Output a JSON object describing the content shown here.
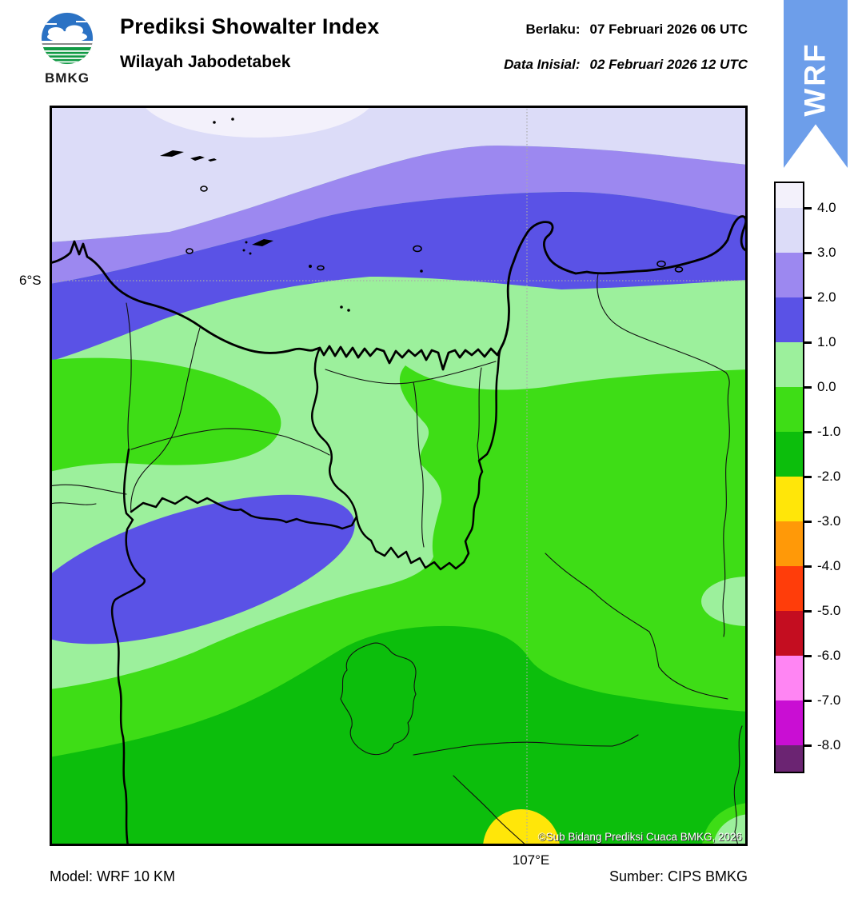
{
  "header": {
    "logo_text": "BMKG",
    "title": "Prediksi Showalter Index",
    "subtitle": "Wilayah Jabodetabek",
    "valid": {
      "label": "Berlaku:",
      "value": "07 Februari 2026 06 UTC"
    },
    "initial": {
      "label": "Data Inisial:",
      "value": "02 Februari 2026 12 UTC"
    },
    "ribbon_label": "WRF"
  },
  "map": {
    "lat_label": "6°S",
    "lon_label": "107°E",
    "copyright": "©Sub Bidang Prediksi Cuaca BMKG, 2026"
  },
  "colorbar": {
    "ticks": [
      "4.0",
      "3.0",
      "2.0",
      "1.0",
      "0.0",
      "-1.0",
      "-2.0",
      "-3.0",
      "-4.0",
      "-5.0",
      "-6.0",
      "-7.0",
      "-8.0"
    ],
    "colors": [
      "#F3F1FB",
      "#DCDCF8",
      "#9C88F0",
      "#5A52E6",
      "#9CF09C",
      "#3EDD16",
      "#0CBE0C",
      "#FFE609",
      "#FF9908",
      "#FF3D0A",
      "#C40D20",
      "#FF85F3",
      "#C90ED3",
      "#6B2472"
    ]
  },
  "footer": {
    "model": "Model: WRF 10 KM",
    "source": "Sumber: CIPS BMKG"
  },
  "accent": {
    "ribbon_blue": "#6D9EEA",
    "logo_blue": "#2B72C4",
    "logo_green": "#119A44"
  }
}
